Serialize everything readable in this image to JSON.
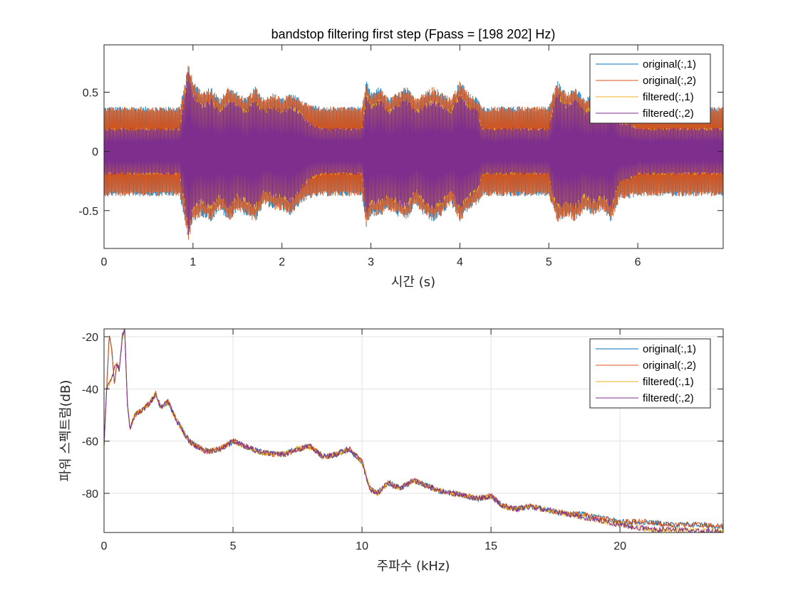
{
  "chart_data": [
    {
      "type": "line",
      "title": "bandstop filtering first step  (Fpass = [198 202] Hz)",
      "xlabel": "시간 (s)",
      "ylabel": "",
      "xlim": [
        0,
        6.96
      ],
      "ylim": [
        -0.82,
        0.9
      ],
      "xticks": [
        0,
        1,
        2,
        3,
        4,
        5,
        6
      ],
      "yticks": [
        -0.5,
        0,
        0.5
      ],
      "xtick_labels": [
        "0",
        "1",
        "2",
        "3",
        "4",
        "5",
        "6"
      ],
      "ytick_labels": [
        "-0.5",
        "0",
        "0.5"
      ],
      "grid": false,
      "legend_position": "top-right",
      "series": [
        {
          "name": "original(:,1)",
          "color": "#0072BD"
        },
        {
          "name": "original(:,2)",
          "color": "#D95319"
        },
        {
          "name": "filtered(:,1)",
          "color": "#EDB120"
        },
        {
          "name": "filtered(:,2)",
          "color": "#7E2F8E"
        }
      ],
      "envelope_x": [
        0,
        0.85,
        0.9,
        0.95,
        1.0,
        1.1,
        1.2,
        1.3,
        1.4,
        1.5,
        1.6,
        1.7,
        1.8,
        1.9,
        2.0,
        2.1,
        2.2,
        2.3,
        2.45,
        2.9,
        2.95,
        3.0,
        3.1,
        3.2,
        3.3,
        3.4,
        3.5,
        3.6,
        3.7,
        3.8,
        3.9,
        4.0,
        4.1,
        4.2,
        4.25,
        5.0,
        5.05,
        5.1,
        5.2,
        5.3,
        5.4,
        5.5,
        5.6,
        5.7,
        5.8,
        5.9,
        6.0,
        6.96
      ],
      "original_upper": [
        0.38,
        0.38,
        0.55,
        0.75,
        0.6,
        0.5,
        0.55,
        0.45,
        0.55,
        0.5,
        0.45,
        0.55,
        0.45,
        0.5,
        0.45,
        0.5,
        0.45,
        0.4,
        0.38,
        0.38,
        0.6,
        0.5,
        0.55,
        0.45,
        0.5,
        0.55,
        0.45,
        0.5,
        0.55,
        0.5,
        0.45,
        0.6,
        0.5,
        0.45,
        0.38,
        0.38,
        0.5,
        0.6,
        0.5,
        0.55,
        0.45,
        0.5,
        0.45,
        0.55,
        0.4,
        0.4,
        0.38,
        0.38
      ],
      "original_lower": [
        -0.38,
        -0.38,
        -0.55,
        -0.78,
        -0.6,
        -0.55,
        -0.6,
        -0.5,
        -0.6,
        -0.5,
        -0.55,
        -0.6,
        -0.45,
        -0.5,
        -0.5,
        -0.55,
        -0.45,
        -0.4,
        -0.38,
        -0.38,
        -0.65,
        -0.55,
        -0.55,
        -0.5,
        -0.55,
        -0.6,
        -0.45,
        -0.55,
        -0.6,
        -0.55,
        -0.45,
        -0.6,
        -0.5,
        -0.45,
        -0.38,
        -0.38,
        -0.5,
        -0.6,
        -0.55,
        -0.6,
        -0.5,
        -0.55,
        -0.5,
        -0.6,
        -0.4,
        -0.4,
        -0.38,
        -0.38
      ],
      "filtered_upper": [
        0.2,
        0.2,
        0.45,
        0.7,
        0.5,
        0.4,
        0.45,
        0.35,
        0.45,
        0.4,
        0.35,
        0.45,
        0.35,
        0.4,
        0.35,
        0.4,
        0.35,
        0.25,
        0.2,
        0.2,
        0.5,
        0.4,
        0.45,
        0.35,
        0.4,
        0.45,
        0.35,
        0.4,
        0.45,
        0.4,
        0.35,
        0.5,
        0.4,
        0.35,
        0.2,
        0.2,
        0.4,
        0.5,
        0.4,
        0.45,
        0.35,
        0.4,
        0.35,
        0.45,
        0.25,
        0.25,
        0.2,
        0.2
      ],
      "filtered_lower": [
        -0.2,
        -0.2,
        -0.45,
        -0.75,
        -0.5,
        -0.45,
        -0.5,
        -0.4,
        -0.5,
        -0.4,
        -0.45,
        -0.5,
        -0.35,
        -0.4,
        -0.4,
        -0.45,
        -0.35,
        -0.25,
        -0.2,
        -0.2,
        -0.55,
        -0.45,
        -0.45,
        -0.4,
        -0.45,
        -0.5,
        -0.35,
        -0.45,
        -0.5,
        -0.45,
        -0.35,
        -0.5,
        -0.4,
        -0.35,
        -0.2,
        -0.2,
        -0.4,
        -0.5,
        -0.45,
        -0.5,
        -0.4,
        -0.45,
        -0.4,
        -0.5,
        -0.25,
        -0.25,
        -0.2,
        -0.2
      ]
    },
    {
      "type": "line",
      "title": "",
      "xlabel": "주파수 (kHz)",
      "ylabel": "파워 스펙트럼(dB)",
      "xlim": [
        0,
        24
      ],
      "ylim": [
        -95,
        -17
      ],
      "xticks": [
        0,
        5,
        10,
        15,
        20
      ],
      "yticks": [
        -80,
        -60,
        -40,
        -20
      ],
      "xtick_labels": [
        "0",
        "5",
        "10",
        "15",
        "20"
      ],
      "ytick_labels": [
        "-80",
        "-60",
        "-40",
        "-20"
      ],
      "grid": true,
      "legend_position": "top-right",
      "series": [
        {
          "name": "original(:,1)",
          "color": "#0072BD"
        },
        {
          "name": "original(:,2)",
          "color": "#D95319"
        },
        {
          "name": "filtered(:,1)",
          "color": "#EDB120"
        },
        {
          "name": "filtered(:,2)",
          "color": "#7E2F8E"
        }
      ],
      "x": [
        0,
        0.1,
        0.2,
        0.3,
        0.4,
        0.5,
        0.6,
        0.7,
        0.8,
        0.9,
        1.0,
        1.2,
        1.5,
        1.8,
        2.0,
        2.2,
        2.5,
        2.8,
        3.0,
        3.3,
        3.6,
        4.0,
        4.5,
        5.0,
        5.5,
        6.0,
        6.5,
        7.0,
        7.5,
        8.0,
        8.5,
        9.0,
        9.5,
        10.0,
        10.3,
        10.6,
        11.0,
        11.5,
        12.0,
        12.5,
        13.0,
        13.5,
        14.0,
        14.5,
        15.0,
        15.5,
        16.0,
        16.5,
        17.0,
        17.5,
        18.0,
        18.5,
        19.0,
        19.5,
        20.0,
        20.5,
        21.0,
        21.5,
        22.0,
        22.5,
        23.0,
        23.5,
        24.0
      ],
      "original": [
        -62,
        -40,
        -20,
        -25,
        -38,
        -30,
        -33,
        -20,
        -17,
        -45,
        -55,
        -50,
        -48,
        -45,
        -42,
        -47,
        -45,
        -52,
        -55,
        -60,
        -62,
        -64,
        -63,
        -60,
        -62,
        -64,
        -65,
        -65,
        -63,
        -62,
        -66,
        -65,
        -63,
        -68,
        -78,
        -80,
        -76,
        -78,
        -75,
        -77,
        -79,
        -80,
        -81,
        -82,
        -81,
        -85,
        -86,
        -85,
        -86,
        -87,
        -88,
        -88,
        -89,
        -90,
        -91,
        -91,
        -91,
        -91.5,
        -92,
        -92,
        -92,
        -92.5,
        -92.5
      ],
      "filtered": [
        -62,
        -40,
        -38,
        -36,
        -32,
        -31,
        -33,
        -20,
        -17,
        -45,
        -55,
        -50,
        -48,
        -45,
        -42,
        -47,
        -45,
        -52,
        -55,
        -60,
        -62,
        -64,
        -63,
        -60,
        -62,
        -64,
        -65,
        -65,
        -63,
        -62,
        -66,
        -65,
        -63,
        -68,
        -78,
        -80,
        -76,
        -78,
        -75,
        -77,
        -79,
        -80,
        -81,
        -82,
        -81,
        -85,
        -86,
        -85,
        -86,
        -87,
        -88,
        -89,
        -90,
        -91,
        -92,
        -93,
        -93.5,
        -94,
        -94,
        -94,
        -94.5,
        -94.5,
        -95
      ]
    }
  ]
}
